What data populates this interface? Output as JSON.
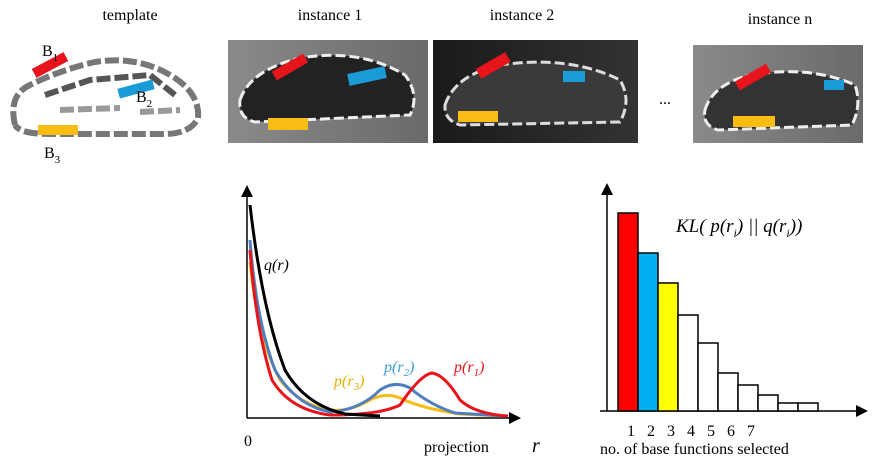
{
  "header": {
    "template": "template",
    "instance_1": "instance 1",
    "instance_2": "instance 2",
    "instance_n": "instance n",
    "ellipsis": "..."
  },
  "template_parts": [
    {
      "label": "B",
      "sub": "1"
    },
    {
      "label": "B",
      "sub": "2"
    },
    {
      "label": "B",
      "sub": "3"
    }
  ],
  "density_plot": {
    "origin": "0",
    "x_label": "projection",
    "x_symbol": "r",
    "curves": [
      {
        "text": "q(r)"
      },
      {
        "text": "p(r",
        "sub": "3",
        "close": ")"
      },
      {
        "text": "p(r",
        "sub": "2",
        "close": ")"
      },
      {
        "text": "p(r",
        "sub": "1",
        "close": ")"
      }
    ]
  },
  "chart_data": {
    "type": "bar",
    "title": {
      "a": "KL( p(r",
      "sub1": "i",
      "b": ") || q(r",
      "sub2": "i",
      "c": "))"
    },
    "x_label": "no. of base functions selected",
    "categories": [
      "1",
      "2",
      "3",
      "4",
      "5",
      "6",
      "7",
      null,
      null,
      null
    ],
    "values": [
      0.99,
      0.79,
      0.64,
      0.48,
      0.34,
      0.19,
      0.13,
      0.08,
      0.04,
      0.04
    ],
    "colors": [
      "#ff0000",
      "#00b0f0",
      "#ffff00",
      "#ffffff",
      "#ffffff",
      "#ffffff",
      "#ffffff",
      "#ffffff",
      "#ffffff",
      "#ffffff"
    ],
    "ylim": [
      0,
      1
    ]
  }
}
